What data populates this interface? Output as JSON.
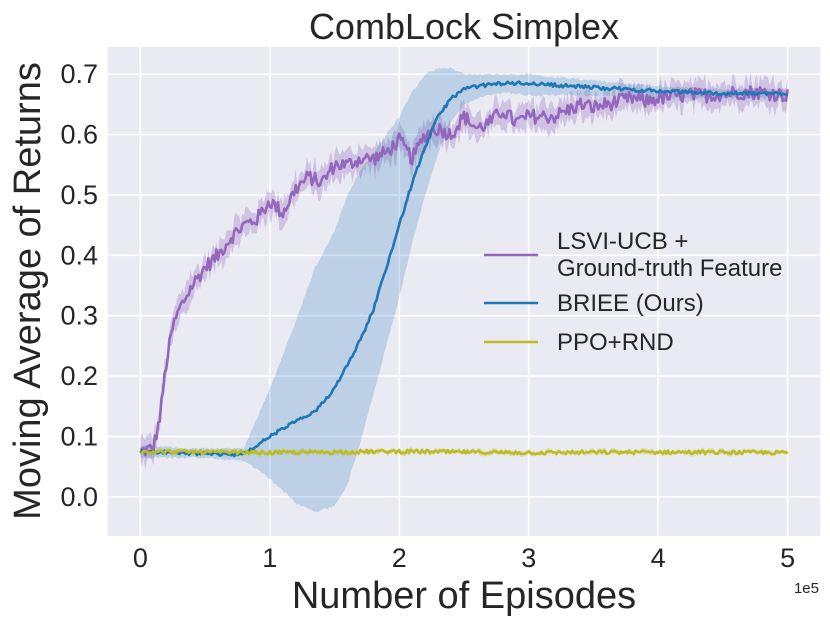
{
  "chart_data": {
    "type": "line",
    "title": "CombLock Simplex",
    "xlabel": "Number of Episodes",
    "ylabel": "Moving Average of Returns",
    "x_multiplier_label": "1e5",
    "xlim": [
      -0.25,
      5.25
    ],
    "ylim": [
      -0.065,
      0.745
    ],
    "xticks": [
      0,
      1,
      2,
      3,
      4,
      5
    ],
    "xtick_labels": [
      "0",
      "1",
      "2",
      "3",
      "4",
      "5"
    ],
    "yticks": [
      0.0,
      0.1,
      0.2,
      0.3,
      0.4,
      0.5,
      0.6,
      0.7
    ],
    "ytick_labels": [
      "0.0",
      "0.1",
      "0.2",
      "0.3",
      "0.4",
      "0.5",
      "0.6",
      "0.7"
    ],
    "grid": true,
    "legend_position": "center-right",
    "series": [
      {
        "name": "LSVI-UCB + Ground-truth Feature",
        "legend_lines": [
          "LSVI-UCB +",
          "Ground-truth Feature"
        ],
        "color": "#9467bd",
        "x": [
          0,
          0.1,
          0.15,
          0.2,
          0.25,
          0.3,
          0.4,
          0.5,
          0.6,
          0.7,
          0.8,
          0.9,
          1.0,
          1.1,
          1.2,
          1.3,
          1.4,
          1.5,
          1.6,
          1.7,
          1.8,
          1.9,
          2.0,
          2.1,
          2.2,
          2.3,
          2.4,
          2.5,
          2.6,
          2.7,
          2.8,
          2.9,
          3.0,
          3.1,
          3.2,
          3.3,
          3.4,
          3.5,
          3.6,
          3.7,
          3.8,
          3.9,
          4.0,
          4.2,
          4.4,
          4.6,
          4.8,
          5.0
        ],
        "y": [
          0.075,
          0.08,
          0.13,
          0.22,
          0.28,
          0.31,
          0.35,
          0.38,
          0.4,
          0.43,
          0.45,
          0.46,
          0.49,
          0.47,
          0.51,
          0.53,
          0.52,
          0.55,
          0.55,
          0.56,
          0.56,
          0.57,
          0.59,
          0.56,
          0.6,
          0.61,
          0.6,
          0.63,
          0.61,
          0.62,
          0.64,
          0.62,
          0.63,
          0.63,
          0.63,
          0.64,
          0.65,
          0.645,
          0.65,
          0.655,
          0.66,
          0.655,
          0.66,
          0.665,
          0.665,
          0.67,
          0.67,
          0.665
        ],
        "band": 0.02,
        "jitter": 0.012
      },
      {
        "name": "BRIEE (Ours)",
        "legend_lines": [
          "BRIEE (Ours)"
        ],
        "color": "#1f77b4",
        "x": [
          0,
          0.4,
          0.8,
          1.0,
          1.2,
          1.35,
          1.5,
          1.6,
          1.7,
          1.8,
          1.9,
          2.0,
          2.1,
          2.2,
          2.3,
          2.4,
          2.5,
          2.6,
          2.8,
          3.0,
          3.2,
          3.5,
          4.0,
          4.5,
          5.0
        ],
        "y": [
          0.075,
          0.072,
          0.07,
          0.1,
          0.125,
          0.14,
          0.18,
          0.22,
          0.26,
          0.31,
          0.38,
          0.45,
          0.52,
          0.58,
          0.63,
          0.66,
          0.675,
          0.68,
          0.685,
          0.685,
          0.682,
          0.678,
          0.672,
          0.668,
          0.668
        ],
        "upper": [
          0.085,
          0.08,
          0.08,
          0.18,
          0.29,
          0.38,
          0.44,
          0.5,
          0.54,
          0.57,
          0.6,
          0.63,
          0.67,
          0.7,
          0.71,
          0.71,
          0.7,
          0.7,
          0.7,
          0.7,
          0.695,
          0.69,
          0.68,
          0.675,
          0.675
        ],
        "lower": [
          0.065,
          0.065,
          0.06,
          0.03,
          -0.01,
          -0.025,
          -0.015,
          0.02,
          0.09,
          0.17,
          0.25,
          0.33,
          0.42,
          0.5,
          0.57,
          0.62,
          0.65,
          0.66,
          0.67,
          0.665,
          0.665,
          0.665,
          0.66,
          0.66,
          0.66
        ],
        "jitter": 0.003
      },
      {
        "name": "PPO+RND",
        "legend_lines": [
          "PPO+RND"
        ],
        "color": "#bcbd22",
        "x": [
          0,
          1,
          2,
          3,
          4,
          5
        ],
        "y": [
          0.075,
          0.073,
          0.075,
          0.073,
          0.074,
          0.073
        ],
        "band": 0.004,
        "jitter": 0.003
      }
    ]
  }
}
